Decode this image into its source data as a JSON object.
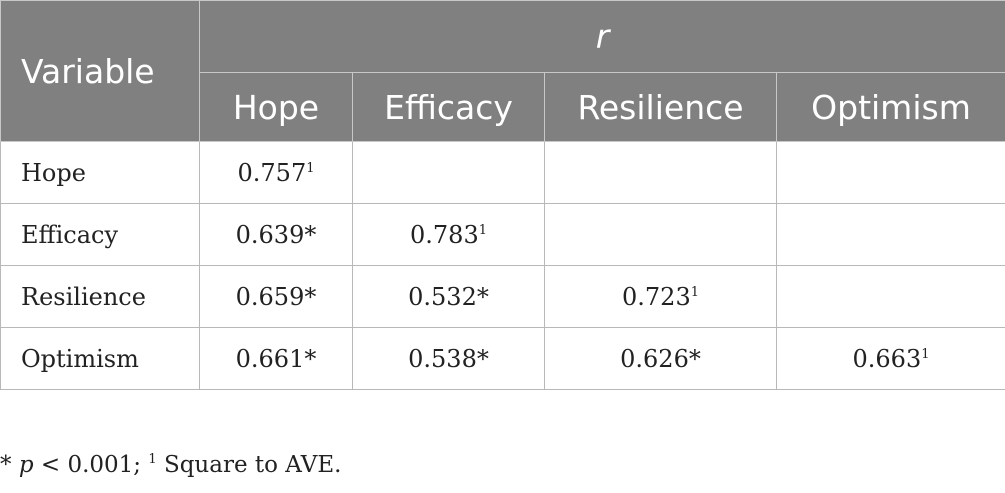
{
  "table": {
    "header": {
      "variable_label": "Variable",
      "r_label": "r",
      "columns": [
        "Hope",
        "Efficacy",
        "Resilience",
        "Optimism"
      ]
    },
    "rows": [
      {
        "label": "Hope",
        "cells": [
          {
            "value": "0.757",
            "mark": "1"
          },
          {
            "value": "",
            "mark": ""
          },
          {
            "value": "",
            "mark": ""
          },
          {
            "value": "",
            "mark": ""
          }
        ]
      },
      {
        "label": "Efficacy",
        "cells": [
          {
            "value": "0.639*",
            "mark": ""
          },
          {
            "value": "0.783",
            "mark": "1"
          },
          {
            "value": "",
            "mark": ""
          },
          {
            "value": "",
            "mark": ""
          }
        ]
      },
      {
        "label": "Resilience",
        "cells": [
          {
            "value": "0.659*",
            "mark": ""
          },
          {
            "value": "0.532*",
            "mark": ""
          },
          {
            "value": "0.723",
            "mark": "1"
          },
          {
            "value": "",
            "mark": ""
          }
        ]
      },
      {
        "label": "Optimism",
        "cells": [
          {
            "value": "0.661*",
            "mark": ""
          },
          {
            "value": "0.538*",
            "mark": ""
          },
          {
            "value": "0.626*",
            "mark": ""
          },
          {
            "value": "0.663",
            "mark": "1"
          }
        ]
      }
    ]
  },
  "footnote": {
    "star": "* ",
    "p": "p",
    "threshold": " < 0.001; ",
    "mark": "1",
    "ave_text": " Square to AVE."
  },
  "colors": {
    "header_bg": "#808080",
    "header_text": "#ffffff",
    "body_text": "#222222"
  }
}
